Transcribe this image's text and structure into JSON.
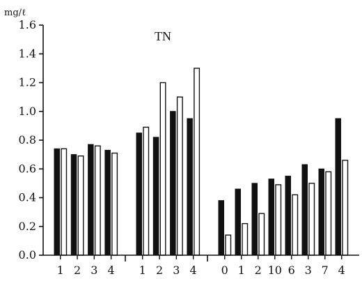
{
  "chart_data": {
    "type": "bar",
    "title": "TN",
    "ylabel": "mg/ℓ",
    "xlabel": "",
    "ylim": [
      0,
      1.6
    ],
    "yticks": [
      "0.0",
      "0.2",
      "0.4",
      "0.6",
      "0.8",
      "1.0",
      "1.2",
      "1.4",
      "1.6"
    ],
    "grid": false,
    "colors": {
      "dark": "#111111",
      "light": "#ffffff"
    },
    "groups": [
      {
        "categories": [
          "1",
          "2",
          "3",
          "4"
        ],
        "series": [
          {
            "values": [
              0.74,
              0.7,
              0.77,
              0.73
            ]
          },
          {
            "values": [
              0.74,
              0.69,
              0.76,
              0.71
            ]
          }
        ]
      },
      {
        "categories": [
          "1",
          "2",
          "3",
          "4"
        ],
        "series": [
          {
            "values": [
              0.85,
              0.82,
              1.0,
              0.95
            ]
          },
          {
            "values": [
              0.89,
              1.2,
              1.1,
              1.3
            ]
          }
        ]
      },
      {
        "categories": [
          "0",
          "1",
          "2",
          "10",
          "6",
          "3",
          "7",
          "4"
        ],
        "series": [
          {
            "values": [
              0.38,
              0.46,
              0.5,
              0.53,
              0.55,
              0.63,
              0.6,
              0.95
            ]
          },
          {
            "values": [
              0.14,
              0.22,
              0.29,
              0.49,
              0.42,
              0.5,
              0.58,
              0.66
            ]
          }
        ]
      }
    ]
  }
}
